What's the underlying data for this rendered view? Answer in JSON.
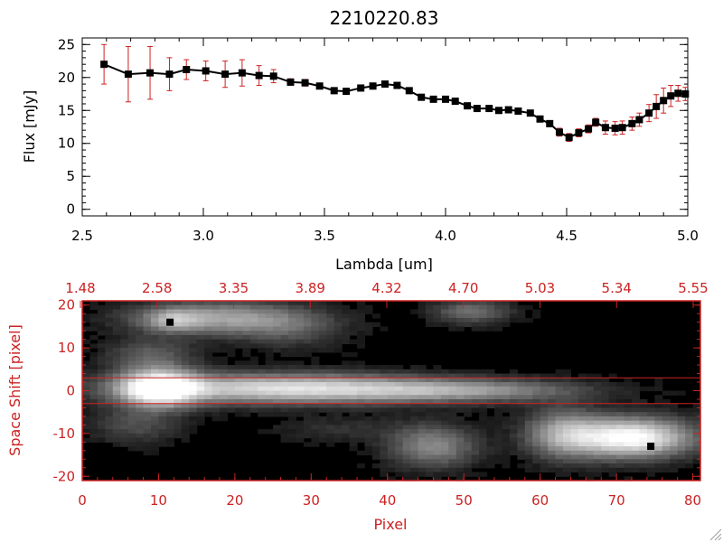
{
  "colors": {
    "axis": "#000000",
    "accent": "#cc2222",
    "marker": "#000000",
    "background": "#ffffff"
  },
  "chart_data": [
    {
      "type": "line",
      "title": "2210220.83",
      "xlabel": "Lambda [um]",
      "ylabel": "Flux [mJy]",
      "xlim": [
        2.5,
        5.0
      ],
      "ylim": [
        -1,
        26
      ],
      "x_ticks": [
        "2.5",
        "3.0",
        "3.5",
        "4.0",
        "4.5",
        "5.0"
      ],
      "y_ticks": [
        "0",
        "5",
        "10",
        "15",
        "20",
        "25"
      ],
      "series": [
        {
          "x": [
            2.59,
            2.69,
            2.78,
            2.86,
            2.93,
            3.01,
            3.09,
            3.16,
            3.23,
            3.29,
            3.36,
            3.42,
            3.48,
            3.54,
            3.59,
            3.65,
            3.7,
            3.75,
            3.8,
            3.85,
            3.9,
            3.95,
            4.0,
            4.04,
            4.09,
            4.13,
            4.18,
            4.22,
            4.26,
            4.3,
            4.35,
            4.39,
            4.43,
            4.47,
            4.51,
            4.55,
            4.59,
            4.62,
            4.66,
            4.7,
            4.73,
            4.77,
            4.8,
            4.84,
            4.87,
            4.9,
            4.93,
            4.96,
            4.99
          ],
          "y": [
            22.0,
            20.5,
            20.7,
            20.5,
            21.2,
            21.0,
            20.5,
            20.7,
            20.3,
            20.2,
            19.3,
            19.2,
            18.7,
            18.0,
            17.9,
            18.4,
            18.7,
            19.0,
            18.8,
            18.0,
            17.0,
            16.7,
            16.7,
            16.4,
            15.7,
            15.3,
            15.3,
            15.0,
            15.1,
            14.9,
            14.6,
            13.7,
            13.0,
            11.7,
            10.9,
            11.6,
            12.2,
            13.2,
            12.4,
            12.3,
            12.4,
            13.0,
            13.6,
            14.6,
            15.6,
            16.5,
            17.2,
            17.6,
            17.5
          ],
          "yerr": [
            3.0,
            4.2,
            4.0,
            2.5,
            1.5,
            1.5,
            2.0,
            2.0,
            1.5,
            1.0,
            0.5,
            0.5,
            0.4,
            0.4,
            0.4,
            0.4,
            0.4,
            0.4,
            0.4,
            0.4,
            0.4,
            0.4,
            0.4,
            0.4,
            0.4,
            0.4,
            0.4,
            0.4,
            0.4,
            0.4,
            0.4,
            0.4,
            0.4,
            0.6,
            0.6,
            0.6,
            0.6,
            0.6,
            1.0,
            1.0,
            1.0,
            1.0,
            1.0,
            1.3,
            1.8,
            1.9,
            1.6,
            1.2,
            1.0
          ]
        }
      ]
    },
    {
      "type": "heatmap",
      "xlabel": "Pixel",
      "ylabel": "Space Shift [pixel]",
      "xlim": [
        0,
        81
      ],
      "ylim": [
        -21,
        21
      ],
      "x_ticks": [
        "0",
        "10",
        "20",
        "30",
        "40",
        "50",
        "60",
        "70",
        "80"
      ],
      "y_ticks": [
        "-20",
        "-10",
        "0",
        "10",
        "20"
      ],
      "top_ticks": [
        "1.48",
        "2.58",
        "3.35",
        "3.89",
        "4.32",
        "4.70",
        "5.03",
        "5.34",
        "5.55"
      ],
      "aperture_lines": [
        3,
        -3
      ],
      "blobs": [
        {
          "x": 10,
          "y": 0.5,
          "sx": 3.5,
          "sy": 3.0,
          "amp": 1.0
        },
        {
          "x": 26,
          "y": 0.5,
          "sx": 14,
          "sy": 2.4,
          "amp": 0.8
        },
        {
          "x": 50,
          "y": 0.0,
          "sx": 11,
          "sy": 1.8,
          "amp": 0.45
        },
        {
          "x": 18,
          "y": 17.0,
          "sx": 8,
          "sy": 2.6,
          "amp": 0.55
        },
        {
          "x": 12,
          "y": 16.5,
          "sx": 2.5,
          "sy": 1.8,
          "amp": 0.35
        },
        {
          "x": 51,
          "y": 18.5,
          "sx": 3.5,
          "sy": 2.0,
          "amp": 0.35
        },
        {
          "x": 46,
          "y": -13,
          "sx": 4.0,
          "sy": 3.5,
          "amp": 0.45
        },
        {
          "x": 72,
          "y": -11,
          "sx": 5.5,
          "sy": 3.2,
          "amp": 1.0
        },
        {
          "x": 63,
          "y": -10,
          "sx": 3.5,
          "sy": 4.0,
          "amp": 0.5
        },
        {
          "x": 9,
          "y": 8,
          "sx": 4,
          "sy": 3,
          "amp": 0.28
        },
        {
          "x": 7,
          "y": -8,
          "sx": 4,
          "sy": 3,
          "amp": 0.22
        },
        {
          "x": 34,
          "y": -9,
          "sx": 6,
          "sy": 2,
          "amp": 0.12
        },
        {
          "x": 27,
          "y": 14,
          "sx": 5,
          "sy": 3,
          "amp": 0.2
        }
      ],
      "markers": [
        {
          "x": 11.5,
          "y": 16
        },
        {
          "x": 74.5,
          "y": -13
        }
      ]
    }
  ]
}
